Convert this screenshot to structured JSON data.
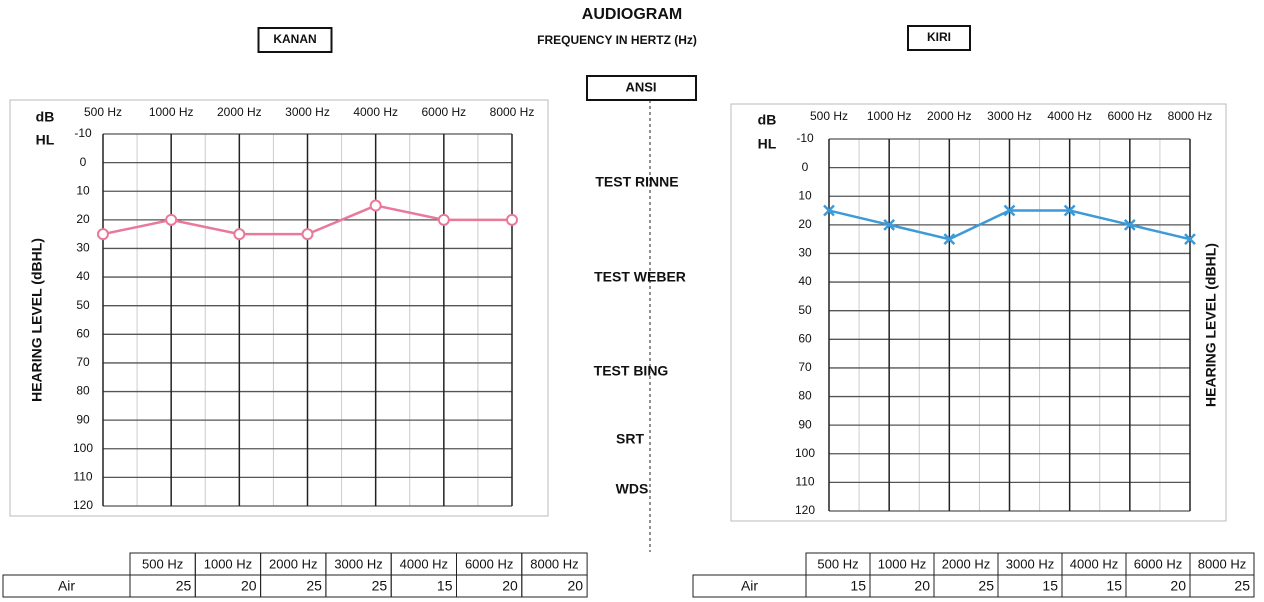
{
  "header": {
    "title": "AUDIOGRAM",
    "subtitle": "FREQUENCY IN HERTZ (Hz)",
    "standard": "ANSI"
  },
  "tests": [
    "TEST RINNE",
    "TEST WEBER",
    "TEST BING",
    "SRT",
    "WDS"
  ],
  "chart_data": [
    {
      "type": "line",
      "title": "KANAN",
      "y_label": "HEARING LEVEL (dBHL)",
      "y_unit": [
        "dB",
        "HL"
      ],
      "y_label_side": "left",
      "categories": [
        "500 Hz",
        "1000 Hz",
        "2000 Hz",
        "3000 Hz",
        "4000 Hz",
        "6000 Hz",
        "8000 Hz"
      ],
      "series": [
        {
          "color": "#e8799a",
          "marker": "circle",
          "values": [
            25,
            20,
            25,
            25,
            15,
            20,
            20
          ]
        }
      ],
      "ylim": [
        -10,
        120
      ],
      "y_reversed": true,
      "yticks": [
        -10,
        0,
        10,
        20,
        30,
        40,
        50,
        60,
        70,
        80,
        90,
        100,
        110,
        120
      ],
      "grid": true
    },
    {
      "type": "line",
      "title": "KIRI",
      "y_label": "HEARING LEVEL (dBHL)",
      "y_unit": [
        "dB",
        "HL"
      ],
      "y_label_side": "right",
      "categories": [
        "500 Hz",
        "1000 Hz",
        "2000 Hz",
        "3000 Hz",
        "4000 Hz",
        "6000 Hz",
        "8000 Hz"
      ],
      "series": [
        {
          "color": "#3d9ad8",
          "marker": "x",
          "values": [
            15,
            20,
            25,
            15,
            15,
            20,
            25
          ]
        }
      ],
      "ylim": [
        -10,
        120
      ],
      "y_reversed": true,
      "yticks": [
        -10,
        0,
        10,
        20,
        30,
        40,
        50,
        60,
        70,
        80,
        90,
        100,
        110,
        120
      ],
      "grid": true
    }
  ],
  "tables": [
    {
      "headers": [
        "500 Hz",
        "1000 Hz",
        "2000 Hz",
        "3000 Hz",
        "4000 Hz",
        "6000 Hz",
        "8000 Hz"
      ],
      "row_label": "Air",
      "values": [
        25,
        20,
        25,
        25,
        15,
        20,
        20
      ]
    },
    {
      "headers": [
        "500 Hz",
        "1000 Hz",
        "2000 Hz",
        "3000 Hz",
        "4000 Hz",
        "6000 Hz",
        "8000 Hz"
      ],
      "row_label": "Air",
      "values": [
        15,
        20,
        25,
        15,
        15,
        20,
        25
      ]
    }
  ]
}
